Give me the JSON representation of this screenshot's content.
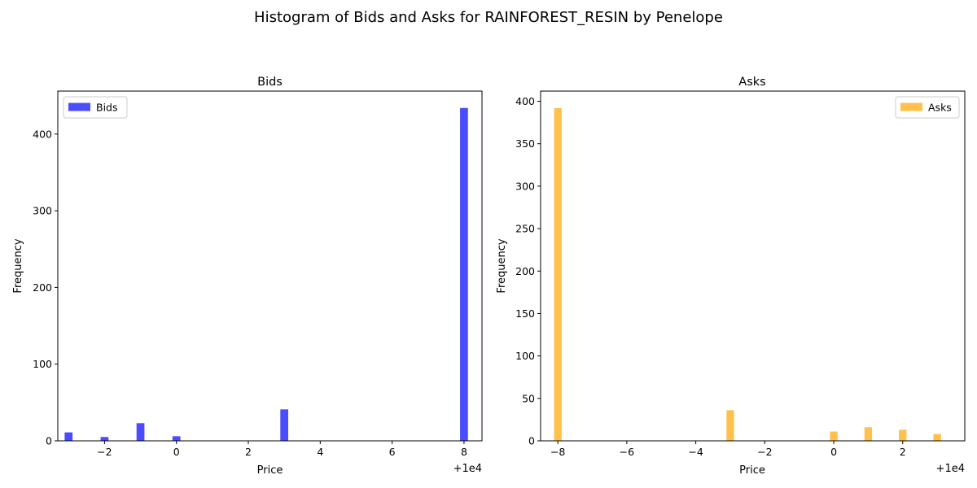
{
  "figure": {
    "suptitle": "Histogram of Bids and Asks for RAINFOREST_RESIN by Penelope"
  },
  "chart_data": [
    {
      "type": "bar",
      "title": "Bids",
      "xlabel": "Price",
      "ylabel": "Frequency",
      "offset_label": "+1e4",
      "xlim": [
        9996.7,
        10008.5
      ],
      "ylim": [
        0,
        456
      ],
      "xticks": [
        9998,
        10000,
        10002,
        10004,
        10006,
        10008
      ],
      "xtick_labels": [
        "−2",
        "0",
        "2",
        "4",
        "6",
        "8"
      ],
      "yticks": [
        0,
        100,
        200,
        300,
        400
      ],
      "ytick_labels": [
        "0",
        "100",
        "200",
        "300",
        "400"
      ],
      "bar_width": 0.22,
      "legend": {
        "label": "Bids",
        "position": "upper left"
      },
      "color": "#0000ff",
      "opacity": 0.7,
      "series": [
        {
          "name": "Bids",
          "x": [
            9997,
            9998,
            9999,
            10000,
            10003,
            10008
          ],
          "values": [
            11,
            5,
            23,
            6,
            41,
            434
          ]
        }
      ]
    },
    {
      "type": "bar",
      "title": "Asks",
      "xlabel": "Price",
      "ylabel": "Frequency",
      "offset_label": "+1e4",
      "xlim": [
        9991.5,
        10003.8
      ],
      "ylim": [
        0,
        412
      ],
      "xticks": [
        9992,
        9994,
        9996,
        9998,
        10000,
        10002
      ],
      "xtick_labels": [
        "−8",
        "−6",
        "−4",
        "−2",
        "0",
        "2"
      ],
      "yticks": [
        0,
        50,
        100,
        150,
        200,
        250,
        300,
        350,
        400
      ],
      "ytick_labels": [
        "0",
        "50",
        "100",
        "150",
        "200",
        "250",
        "300",
        "350",
        "400"
      ],
      "bar_width": 0.22,
      "legend": {
        "label": "Asks",
        "position": "upper right"
      },
      "color": "#ffa500",
      "opacity": 0.7,
      "series": [
        {
          "name": "Asks",
          "x": [
            9992,
            9997,
            10000,
            10001,
            10002,
            10003
          ],
          "values": [
            392,
            36,
            11,
            16,
            13,
            8
          ]
        }
      ]
    }
  ]
}
